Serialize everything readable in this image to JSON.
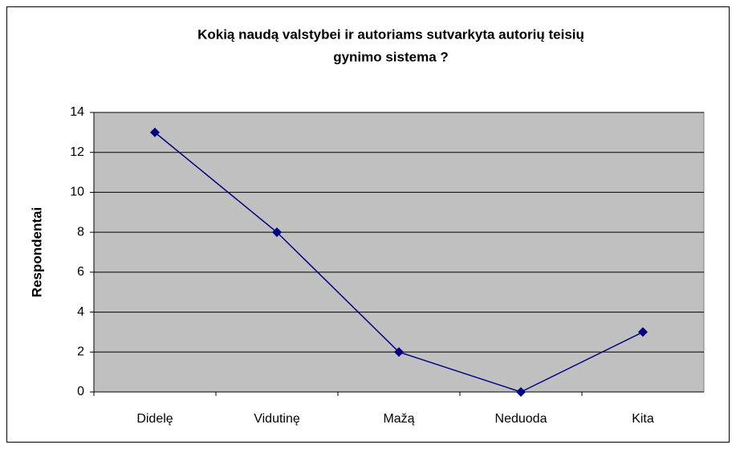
{
  "chart_data": {
    "type": "line",
    "title": [
      "Kokią naudą valstybei ir autoriams sutvarkyta autorių teisių",
      "gynimo sistema ?"
    ],
    "y_label": "Respondentai",
    "categories": [
      "Didelę",
      "Vidutinę",
      "Mažą",
      "Neduoda",
      "Kita"
    ],
    "values": [
      13,
      8,
      2,
      0,
      3
    ],
    "color": "#000080",
    "ylim": [
      0,
      14
    ],
    "yticks": [
      0,
      2,
      4,
      6,
      8,
      10,
      12,
      14
    ],
    "grid": true
  }
}
